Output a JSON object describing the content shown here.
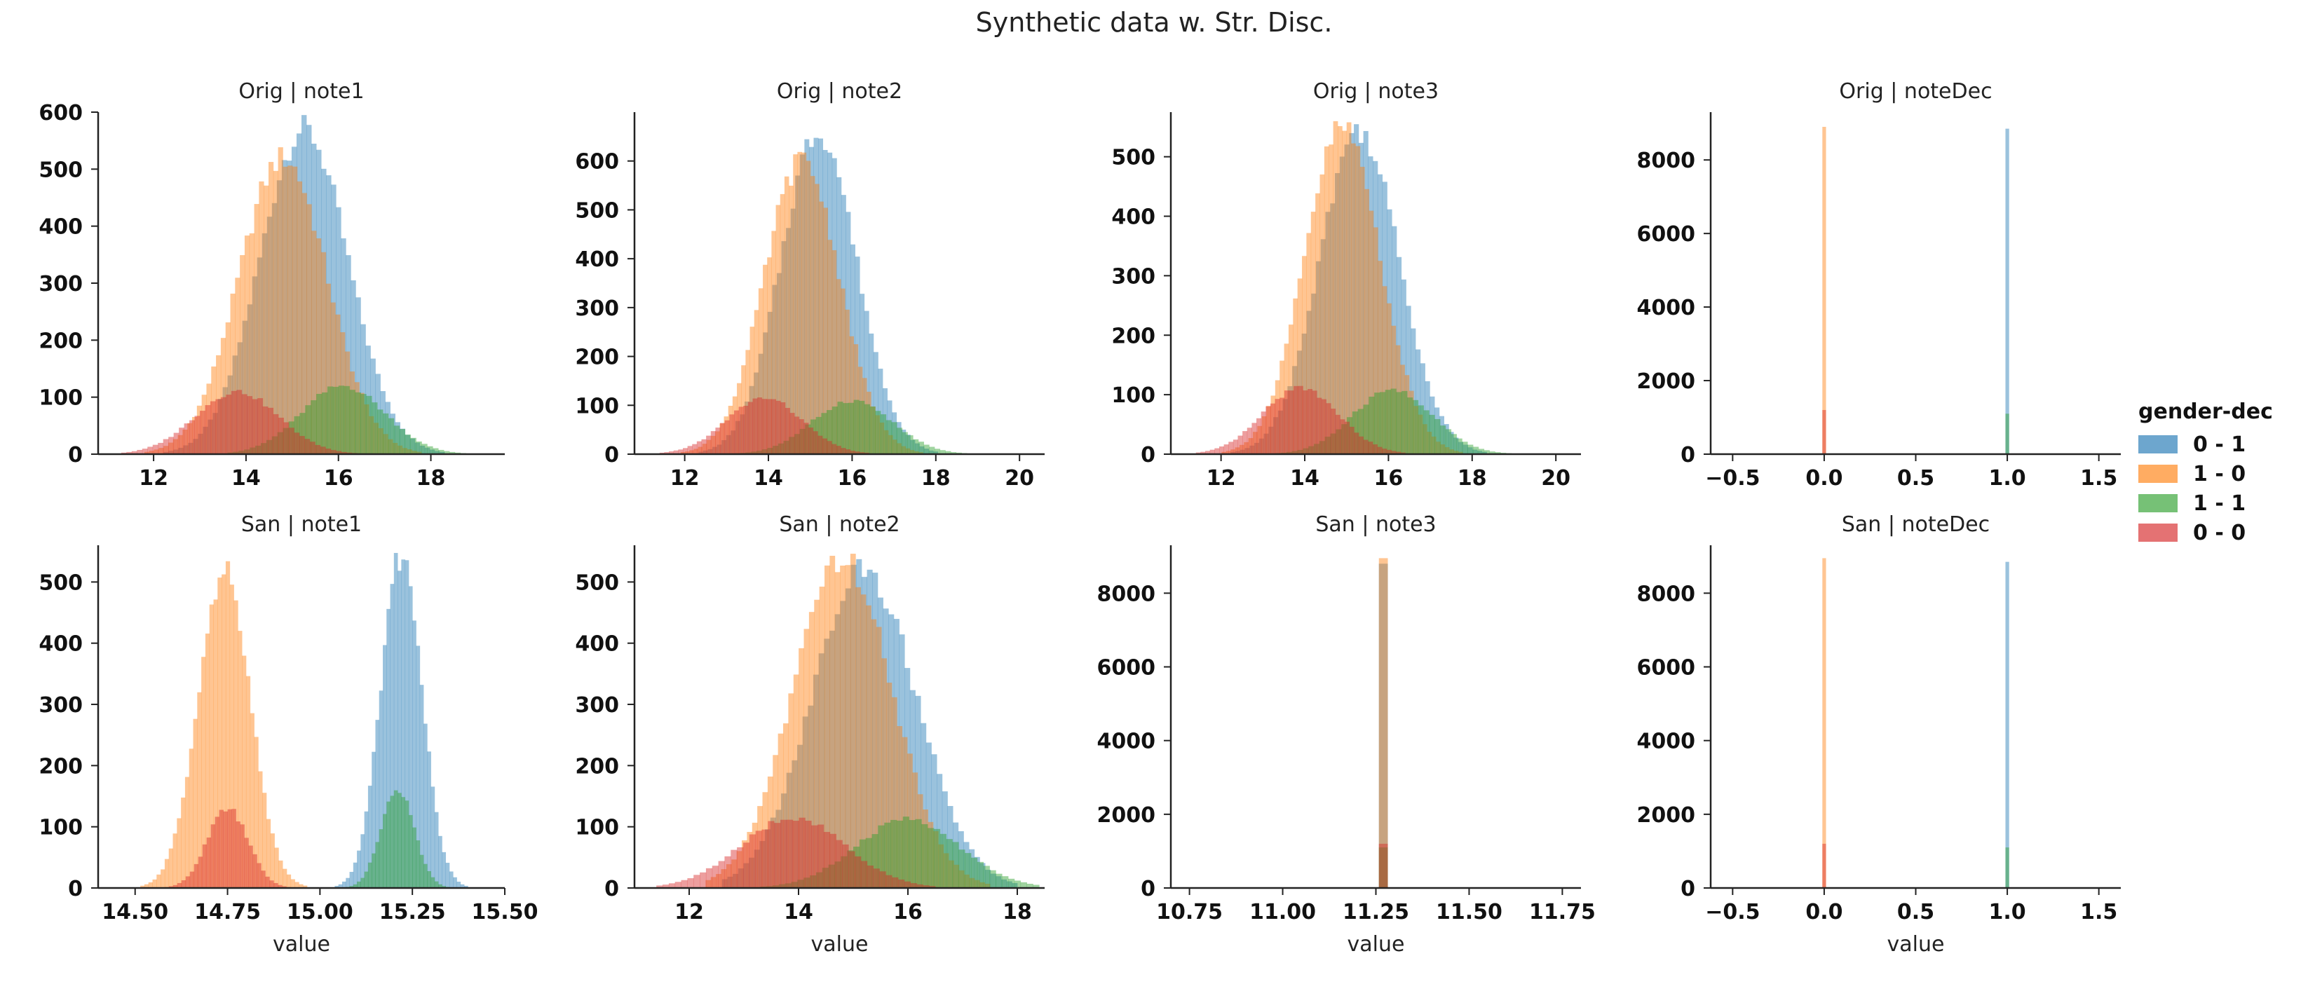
{
  "figure": {
    "title": "Synthetic data w. Str. Disc."
  },
  "legend": {
    "title": "gender-dec",
    "items": [
      {
        "label": "0 - 1",
        "color": "#1f77b4"
      },
      {
        "label": "1 - 0",
        "color": "#ff7f0e"
      },
      {
        "label": "1 - 1",
        "color": "#2ca02c"
      },
      {
        "label": "0 - 0",
        "color": "#d62728"
      }
    ]
  },
  "chart_data": [
    {
      "type": "histogram",
      "title": "Orig | note1",
      "xlabel": "",
      "ylabel": "",
      "xlim": [
        10.8,
        19.6
      ],
      "ylim": [
        0,
        600
      ],
      "xticks": [
        12,
        14,
        16,
        18
      ],
      "yticks": [
        0,
        100,
        200,
        300,
        400,
        500,
        600
      ],
      "series": [
        {
          "name": "0 - 1",
          "kind": "gauss",
          "mean": 15.25,
          "sd": 0.95,
          "peak": 570,
          "range": [
            12.0,
            18.4
          ],
          "bins": 60
        },
        {
          "name": "1 - 0",
          "kind": "gauss",
          "mean": 14.8,
          "sd": 0.95,
          "peak": 520,
          "range": [
            11.8,
            18.0
          ],
          "bins": 60
        },
        {
          "name": "1 - 1",
          "kind": "gauss",
          "mean": 16.1,
          "sd": 0.9,
          "peak": 120,
          "range": [
            13.6,
            19.0
          ],
          "bins": 45
        },
        {
          "name": "0 - 0",
          "kind": "gauss",
          "mean": 13.8,
          "sd": 0.9,
          "peak": 110,
          "range": [
            11.3,
            16.4
          ],
          "bins": 45
        }
      ]
    },
    {
      "type": "histogram",
      "title": "Orig | note2",
      "xlabel": "",
      "ylabel": "",
      "xlim": [
        10.8,
        20.6
      ],
      "ylim": [
        0,
        700
      ],
      "xticks": [
        12,
        14,
        16,
        18,
        20
      ],
      "yticks": [
        0,
        100,
        200,
        300,
        400,
        500,
        600
      ],
      "series": [
        {
          "name": "0 - 1",
          "kind": "gauss",
          "mean": 15.2,
          "sd": 0.9,
          "peak": 660,
          "range": [
            12.0,
            18.6
          ],
          "bins": 60
        },
        {
          "name": "1 - 0",
          "kind": "gauss",
          "mean": 14.8,
          "sd": 0.9,
          "peak": 600,
          "range": [
            11.8,
            18.0
          ],
          "bins": 60
        },
        {
          "name": "1 - 1",
          "kind": "gauss",
          "mean": 16.0,
          "sd": 0.95,
          "peak": 110,
          "range": [
            13.2,
            19.0
          ],
          "bins": 45
        },
        {
          "name": "0 - 0",
          "kind": "gauss",
          "mean": 13.9,
          "sd": 0.9,
          "peak": 115,
          "range": [
            11.4,
            16.4
          ],
          "bins": 45
        }
      ]
    },
    {
      "type": "histogram",
      "title": "Orig | note3",
      "xlabel": "",
      "ylabel": "",
      "xlim": [
        10.8,
        20.6
      ],
      "ylim": [
        0,
        575
      ],
      "xticks": [
        12,
        14,
        16,
        18,
        20
      ],
      "yticks": [
        0,
        100,
        200,
        300,
        400,
        500
      ],
      "series": [
        {
          "name": "0 - 1",
          "kind": "gauss",
          "mean": 15.3,
          "sd": 0.95,
          "peak": 545,
          "range": [
            12.0,
            18.8
          ],
          "bins": 60
        },
        {
          "name": "1 - 0",
          "kind": "gauss",
          "mean": 14.9,
          "sd": 0.9,
          "peak": 550,
          "range": [
            11.8,
            18.2
          ],
          "bins": 60
        },
        {
          "name": "1 - 1",
          "kind": "gauss",
          "mean": 16.1,
          "sd": 0.95,
          "peak": 108,
          "range": [
            13.3,
            19.2
          ],
          "bins": 45
        },
        {
          "name": "0 - 0",
          "kind": "gauss",
          "mean": 13.9,
          "sd": 0.9,
          "peak": 112,
          "range": [
            11.4,
            16.4
          ],
          "bins": 45
        }
      ]
    },
    {
      "type": "histogram",
      "title": "Orig | noteDec",
      "xlabel": "",
      "ylabel": "",
      "xlim": [
        -0.62,
        1.62
      ],
      "ylim": [
        0,
        9300
      ],
      "xticks": [
        -0.5,
        0.0,
        0.5,
        1.0,
        1.5
      ],
      "yticks": [
        0,
        2000,
        4000,
        6000,
        8000
      ],
      "series": [
        {
          "name": "0 - 1",
          "kind": "bar",
          "x": 1.0,
          "width": 0.02,
          "value": 8850
        },
        {
          "name": "1 - 0",
          "kind": "bar",
          "x": 0.0,
          "width": 0.02,
          "value": 8900
        },
        {
          "name": "1 - 1",
          "kind": "bar",
          "x": 1.0,
          "width": 0.02,
          "value": 1100
        },
        {
          "name": "0 - 0",
          "kind": "bar",
          "x": 0.0,
          "width": 0.02,
          "value": 1200
        }
      ]
    },
    {
      "type": "histogram",
      "title": "San | note1",
      "xlabel": "value",
      "ylabel": "",
      "xlim": [
        14.4,
        15.5
      ],
      "ylim": [
        0,
        560
      ],
      "xticks": [
        14.5,
        14.75,
        15.0,
        15.25,
        15.5
      ],
      "yticks": [
        0,
        100,
        200,
        300,
        400,
        500
      ],
      "series": [
        {
          "name": "0 - 1",
          "kind": "gauss",
          "mean": 15.22,
          "sd": 0.055,
          "peak": 545,
          "range": [
            15.0,
            15.45
          ],
          "bins": 45
        },
        {
          "name": "1 - 0",
          "kind": "gauss",
          "mean": 14.74,
          "sd": 0.07,
          "peak": 518,
          "range": [
            14.47,
            15.02
          ],
          "bins": 50
        },
        {
          "name": "1 - 1",
          "kind": "gauss",
          "mean": 15.21,
          "sd": 0.045,
          "peak": 160,
          "range": [
            15.06,
            15.36
          ],
          "bins": 30
        },
        {
          "name": "0 - 0",
          "kind": "gauss",
          "mean": 14.75,
          "sd": 0.055,
          "peak": 130,
          "range": [
            14.58,
            14.92
          ],
          "bins": 30
        }
      ]
    },
    {
      "type": "histogram",
      "title": "San | note2",
      "xlabel": "value",
      "ylabel": "",
      "xlim": [
        11.0,
        18.5
      ],
      "ylim": [
        0,
        560
      ],
      "xticks": [
        12,
        14,
        16,
        18
      ],
      "yticks": [
        0,
        100,
        200,
        300,
        400,
        500
      ],
      "series": [
        {
          "name": "0 - 1",
          "kind": "gauss",
          "mean": 15.2,
          "sd": 0.95,
          "peak": 520,
          "range": [
            12.6,
            18.0
          ],
          "bins": 55
        },
        {
          "name": "1 - 0",
          "kind": "gauss",
          "mean": 14.8,
          "sd": 0.9,
          "peak": 540,
          "range": [
            12.3,
            17.5
          ],
          "bins": 55
        },
        {
          "name": "1 - 1",
          "kind": "gauss",
          "mean": 16.0,
          "sd": 0.95,
          "peak": 112,
          "range": [
            13.3,
            18.4
          ],
          "bins": 45
        },
        {
          "name": "0 - 0",
          "kind": "gauss",
          "mean": 13.9,
          "sd": 0.95,
          "peak": 115,
          "range": [
            11.4,
            16.5
          ],
          "bins": 45
        }
      ]
    },
    {
      "type": "histogram",
      "title": "San | note3",
      "xlabel": "value",
      "ylabel": "",
      "xlim": [
        10.7,
        11.8
      ],
      "ylim": [
        0,
        9300
      ],
      "xticks": [
        10.75,
        11.0,
        11.25,
        11.5,
        11.75
      ],
      "yticks": [
        0,
        2000,
        4000,
        6000,
        8000
      ],
      "series": [
        {
          "name": "0 - 1",
          "kind": "bar",
          "x": 11.27,
          "width": 0.024,
          "value": 8800
        },
        {
          "name": "1 - 0",
          "kind": "bar",
          "x": 11.27,
          "width": 0.024,
          "value": 8950
        },
        {
          "name": "1 - 1",
          "kind": "bar",
          "x": 11.27,
          "width": 0.024,
          "value": 1100
        },
        {
          "name": "0 - 0",
          "kind": "bar",
          "x": 11.27,
          "width": 0.024,
          "value": 1200
        }
      ]
    },
    {
      "type": "histogram",
      "title": "San | noteDec",
      "xlabel": "value",
      "ylabel": "",
      "xlim": [
        -0.62,
        1.62
      ],
      "ylim": [
        0,
        9300
      ],
      "xticks": [
        -0.5,
        0.0,
        0.5,
        1.0,
        1.5
      ],
      "yticks": [
        0,
        2000,
        4000,
        6000,
        8000
      ],
      "series": [
        {
          "name": "0 - 1",
          "kind": "bar",
          "x": 1.0,
          "width": 0.02,
          "value": 8850
        },
        {
          "name": "1 - 0",
          "kind": "bar",
          "x": 0.0,
          "width": 0.02,
          "value": 8950
        },
        {
          "name": "1 - 1",
          "kind": "bar",
          "x": 1.0,
          "width": 0.02,
          "value": 1100
        },
        {
          "name": "0 - 0",
          "kind": "bar",
          "x": 0.0,
          "width": 0.02,
          "value": 1200
        }
      ]
    }
  ]
}
